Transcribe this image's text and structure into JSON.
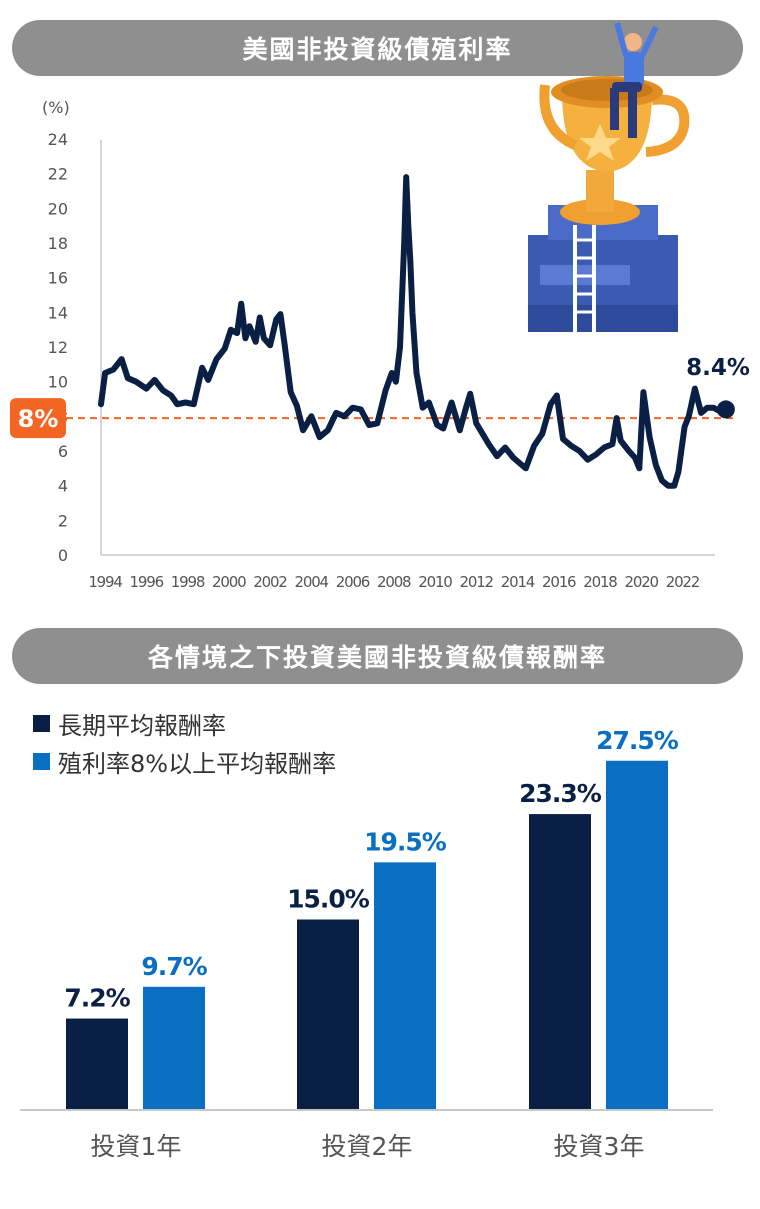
{
  "colors": {
    "navy": "#0a1f44",
    "blue": "#0a6fc2",
    "orange": "#f26522",
    "banner": "#8f8f8f"
  },
  "chart_data": [
    {
      "type": "line",
      "title": "美國非投資級債殖利率",
      "ylabel": "(%)",
      "ylim": [
        0,
        24
      ],
      "yticks": [
        0,
        2,
        4,
        6,
        8,
        10,
        12,
        14,
        16,
        18,
        20,
        22,
        24
      ],
      "xticks": [
        "1994",
        "1996",
        "1998",
        "2000",
        "2002",
        "2004",
        "2006",
        "2008",
        "2010",
        "2012",
        "2014",
        "2016",
        "2018",
        "2020",
        "2022"
      ],
      "reference_label": "8%",
      "reference_value": 7.9,
      "end_label": "8.4%",
      "x": [
        1994.0,
        1994.2,
        1994.6,
        1995.0,
        1995.3,
        1995.7,
        1996.2,
        1996.6,
        1997.0,
        1997.4,
        1997.7,
        1998.1,
        1998.5,
        1998.9,
        1999.2,
        1999.6,
        2000.0,
        2000.3,
        2000.6,
        2000.8,
        2001.0,
        2001.2,
        2001.5,
        2001.7,
        2001.9,
        2002.2,
        2002.5,
        2002.7,
        2002.9,
        2003.2,
        2003.5,
        2003.8,
        2004.2,
        2004.6,
        2005.0,
        2005.4,
        2005.8,
        2006.2,
        2006.6,
        2007.0,
        2007.4,
        2007.8,
        2008.1,
        2008.3,
        2008.5,
        2008.7,
        2008.8,
        2008.9,
        2009.0,
        2009.1,
        2009.3,
        2009.6,
        2009.9,
        2010.3,
        2010.6,
        2011.0,
        2011.4,
        2011.7,
        2011.9,
        2012.2,
        2012.5,
        2012.8,
        2013.2,
        2013.6,
        2014.0,
        2014.4,
        2014.6,
        2015.0,
        2015.4,
        2015.8,
        2016.1,
        2016.4,
        2016.8,
        2017.2,
        2017.6,
        2018.0,
        2018.4,
        2018.8,
        2019.0,
        2019.2,
        2019.6,
        2019.9,
        2020.1,
        2020.3,
        2020.6,
        2020.9,
        2021.2,
        2021.5,
        2021.8,
        2022.0,
        2022.3,
        2022.5,
        2022.8,
        2023.1,
        2023.4,
        2023.7,
        2024.0,
        2024.3
      ],
      "y": [
        8.7,
        10.5,
        10.7,
        11.3,
        10.2,
        10.0,
        9.6,
        10.1,
        9.5,
        9.2,
        8.7,
        8.8,
        8.7,
        10.8,
        10.1,
        11.3,
        11.9,
        13.0,
        12.8,
        14.5,
        12.5,
        13.2,
        12.3,
        13.7,
        12.5,
        12.1,
        13.6,
        13.9,
        12.2,
        9.4,
        8.6,
        7.2,
        8.0,
        6.8,
        7.2,
        8.2,
        8.0,
        8.5,
        8.4,
        7.5,
        7.6,
        9.5,
        10.5,
        10.0,
        12.0,
        18.0,
        21.8,
        19.0,
        17.0,
        14.0,
        10.5,
        8.5,
        8.8,
        7.5,
        7.3,
        8.8,
        7.2,
        8.5,
        9.3,
        7.6,
        7.0,
        6.4,
        5.7,
        6.2,
        5.6,
        5.2,
        5.0,
        6.3,
        7.0,
        8.7,
        9.2,
        6.7,
        6.3,
        6.0,
        5.5,
        5.8,
        6.2,
        6.4,
        7.9,
        6.6,
        6.0,
        5.6,
        5.0,
        9.4,
        6.8,
        5.2,
        4.3,
        4.0,
        4.0,
        4.8,
        7.4,
        8.0,
        9.6,
        8.2,
        8.5,
        8.5,
        8.3,
        8.4
      ]
    },
    {
      "type": "bar",
      "title": "各情境之下投資美國非投資級債報酬率",
      "categories": [
        "投資1年",
        "投資2年",
        "投資3年"
      ],
      "series": [
        {
          "name": "長期平均報酬率",
          "values": [
            7.2,
            15.0,
            23.3
          ],
          "labels": [
            "7.2%",
            "15.0%",
            "23.3%"
          ]
        },
        {
          "name": "殖利率8%以上平均報酬率",
          "values": [
            9.7,
            19.5,
            27.5
          ],
          "labels": [
            "9.7%",
            "19.5%",
            "27.5%"
          ]
        }
      ]
    }
  ]
}
